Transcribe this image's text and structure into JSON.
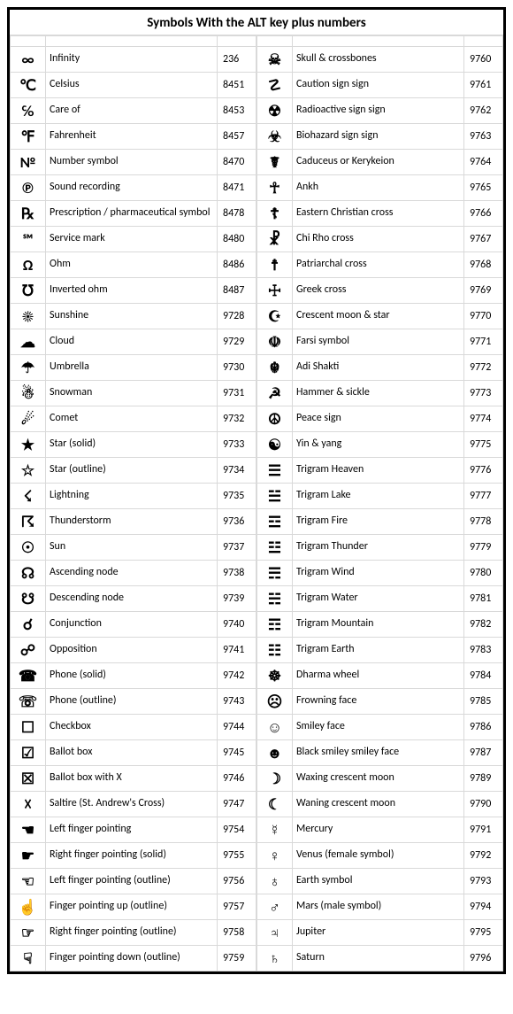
{
  "title": "Symbols With the ALT key plus numbers",
  "font_family": "Calibri, Arial, sans-serif",
  "border_color": "#d9d9d9",
  "outer_border_color": "#000000",
  "left": [
    {
      "sym": "∞",
      "desc": "Infinity",
      "code": "236"
    },
    {
      "sym": "℃",
      "desc": "Celsius",
      "code": "8451"
    },
    {
      "sym": "℅",
      "desc": "Care of",
      "code": "8453"
    },
    {
      "sym": "℉",
      "desc": "Fahrenheit",
      "code": "8457"
    },
    {
      "sym": "№",
      "desc": "Number symbol",
      "code": "8470"
    },
    {
      "sym": "℗",
      "desc": "Sound recording",
      "code": "8471"
    },
    {
      "sym": "℞",
      "desc": "Prescription / pharmaceutical symbol",
      "code": "8478"
    },
    {
      "sym": "℠",
      "desc": "Service mark",
      "code": "8480"
    },
    {
      "sym": "Ω",
      "desc": "Ohm",
      "code": "8486"
    },
    {
      "sym": "℧",
      "desc": "Inverted ohm",
      "code": "8487"
    },
    {
      "sym": "☀",
      "desc": "Sunshine",
      "code": "9728"
    },
    {
      "sym": "☁",
      "desc": "Cloud",
      "code": "9729"
    },
    {
      "sym": "☂",
      "desc": "Umbrella",
      "code": "9730"
    },
    {
      "sym": "☃",
      "desc": "Snowman",
      "code": "9731"
    },
    {
      "sym": "☄",
      "desc": "Comet",
      "code": "9732"
    },
    {
      "sym": "★",
      "desc": "Star (solid)",
      "code": "9733"
    },
    {
      "sym": "☆",
      "desc": "Star (outline)",
      "code": "9734"
    },
    {
      "sym": "☇",
      "desc": "Lightning",
      "code": "9735"
    },
    {
      "sym": "☈",
      "desc": "Thunderstorm",
      "code": "9736"
    },
    {
      "sym": "☉",
      "desc": "Sun",
      "code": "9737"
    },
    {
      "sym": "☊",
      "desc": "Ascending node",
      "code": "9738"
    },
    {
      "sym": "☋",
      "desc": "Descending node",
      "code": "9739"
    },
    {
      "sym": "☌",
      "desc": "Conjunction",
      "code": "9740"
    },
    {
      "sym": "☍",
      "desc": "Opposition",
      "code": "9741"
    },
    {
      "sym": "☎",
      "desc": "Phone (solid)",
      "code": "9742"
    },
    {
      "sym": "☏",
      "desc": "Phone (outline)",
      "code": "9743"
    },
    {
      "sym": "☐",
      "desc": "Checkbox",
      "code": "9744"
    },
    {
      "sym": "☑",
      "desc": "Ballot box",
      "code": "9745"
    },
    {
      "sym": "☒",
      "desc": "Ballot box with X",
      "code": "9746"
    },
    {
      "sym": "☓",
      "desc": "Saltire (St. Andrew's Cross)",
      "code": "9747"
    },
    {
      "sym": "☚",
      "desc": "Left finger pointing",
      "code": "9754"
    },
    {
      "sym": "☛",
      "desc": "Right finger pointing (solid)",
      "code": "9755"
    },
    {
      "sym": "☜",
      "desc": "Left finger pointing (outline)",
      "code": "9756"
    },
    {
      "sym": "☝",
      "desc": "Finger pointing up (outline)",
      "code": "9757"
    },
    {
      "sym": "☞",
      "desc": "Right finger pointing (outline)",
      "code": "9758"
    },
    {
      "sym": "☟",
      "desc": "Finger pointing down (outline)",
      "code": "9759"
    }
  ],
  "right": [
    {
      "sym": "☠",
      "desc": "Skull & crossbones",
      "code": "9760"
    },
    {
      "sym": "☡",
      "desc": "Caution sign sign",
      "code": "9761"
    },
    {
      "sym": "☢",
      "desc": "Radioactive sign sign",
      "code": "9762"
    },
    {
      "sym": "☣",
      "desc": "Biohazard sign sign",
      "code": "9763"
    },
    {
      "sym": "☤",
      "desc": "Caduceus or Kerykeion",
      "code": "9764"
    },
    {
      "sym": "☥",
      "desc": "Ankh",
      "code": "9765"
    },
    {
      "sym": "☦",
      "desc": "Eastern Christian cross",
      "code": "9766"
    },
    {
      "sym": "☧",
      "desc": "Chi Rho cross",
      "code": "9767"
    },
    {
      "sym": "☨",
      "desc": "Patriarchal cross",
      "code": "9768"
    },
    {
      "sym": "☩",
      "desc": "Greek cross",
      "code": "9769"
    },
    {
      "sym": "☪",
      "desc": "Crescent moon & star",
      "code": "9770"
    },
    {
      "sym": "☫",
      "desc": "Farsi symbol",
      "code": "9771"
    },
    {
      "sym": "☬",
      "desc": "Adi Shakti",
      "code": "9772"
    },
    {
      "sym": "☭",
      "desc": "Hammer & sickle",
      "code": "9773"
    },
    {
      "sym": "☮",
      "desc": "Peace sign",
      "code": "9774"
    },
    {
      "sym": "☯",
      "desc": "Yin & yang",
      "code": "9775"
    },
    {
      "sym": "☰",
      "desc": "Trigram Heaven",
      "code": "9776"
    },
    {
      "sym": "☱",
      "desc": "Trigram Lake",
      "code": "9777"
    },
    {
      "sym": "☲",
      "desc": "Trigram Fire",
      "code": "9778"
    },
    {
      "sym": "☳",
      "desc": "Trigram Thunder",
      "code": "9779"
    },
    {
      "sym": "☴",
      "desc": "Trigram Wind",
      "code": "9780"
    },
    {
      "sym": "☵",
      "desc": "Trigram Water",
      "code": "9781"
    },
    {
      "sym": "☶",
      "desc": "Trigram Mountain",
      "code": "9782"
    },
    {
      "sym": "☷",
      "desc": "Trigram Earth",
      "code": "9783"
    },
    {
      "sym": "☸",
      "desc": "Dharma wheel",
      "code": "9784"
    },
    {
      "sym": "☹",
      "desc": "Frowning face",
      "code": "9785"
    },
    {
      "sym": "☺",
      "desc": "Smiley face",
      "code": "9786"
    },
    {
      "sym": "☻",
      "desc": "Black smiley smiley face",
      "code": "9787"
    },
    {
      "sym": "☽",
      "desc": "Waxing crescent moon",
      "code": "9789"
    },
    {
      "sym": "☾",
      "desc": "Waning crescent moon",
      "code": "9790"
    },
    {
      "sym": "☿",
      "desc": "Mercury",
      "code": "9791"
    },
    {
      "sym": "♀",
      "desc": "Venus (female symbol)",
      "code": "9792"
    },
    {
      "sym": "♁",
      "desc": "Earth symbol",
      "code": "9793"
    },
    {
      "sym": "♂",
      "desc": "Mars (male symbol)",
      "code": "9794"
    },
    {
      "sym": "♃",
      "desc": "Jupiter",
      "code": "9795"
    },
    {
      "sym": "♄",
      "desc": "Saturn",
      "code": "9796"
    }
  ]
}
